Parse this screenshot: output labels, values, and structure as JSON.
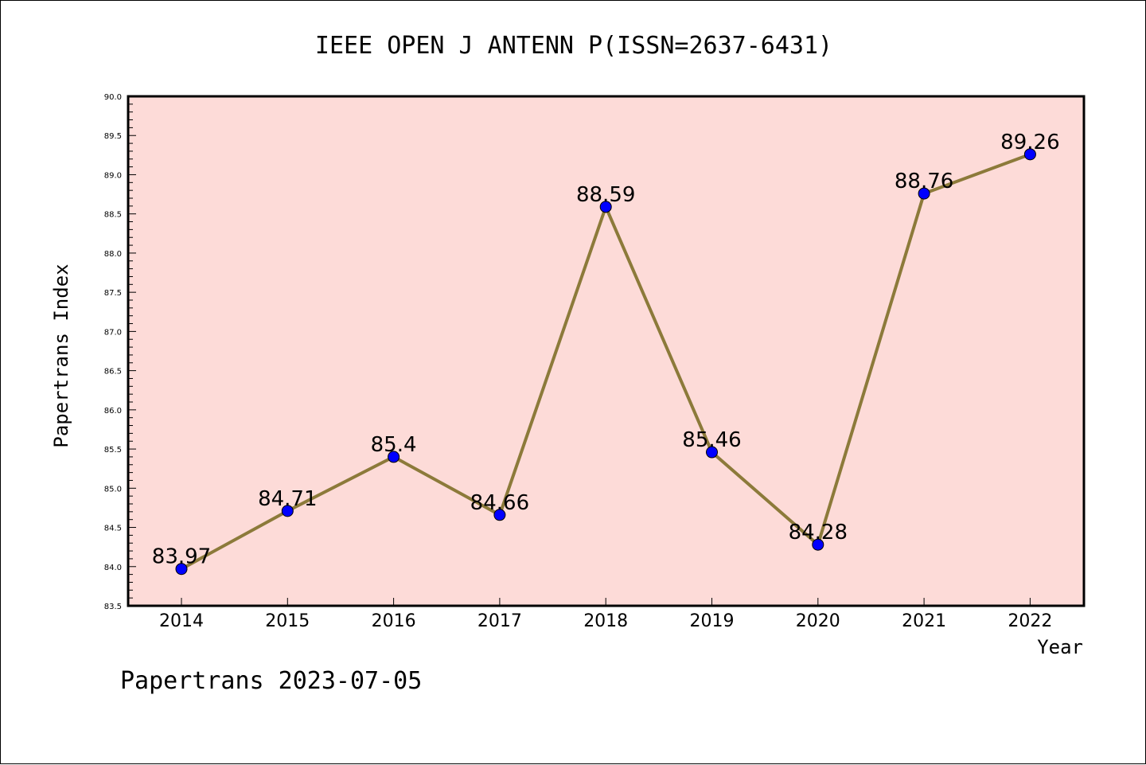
{
  "chart_data": {
    "type": "line",
    "title": "IEEE OPEN J ANTENN P(ISSN=2637-6431)",
    "xlabel": "Year",
    "ylabel": "Papertrans Index",
    "x": [
      "2014",
      "2015",
      "2016",
      "2017",
      "2018",
      "2019",
      "2020",
      "2021",
      "2022"
    ],
    "values": [
      83.97,
      84.71,
      85.4,
      84.66,
      88.59,
      85.46,
      84.28,
      88.76,
      89.26
    ],
    "data_labels": [
      "83.97",
      "84.71",
      "85.4",
      "84.66",
      "88.59",
      "85.46",
      "84.28",
      "88.76",
      "89.26"
    ],
    "ylim": [
      83.5,
      90.0
    ],
    "yticks": [
      "83.5",
      "84.0",
      "84.5",
      "85.0",
      "85.5",
      "86.0",
      "86.5",
      "87.0",
      "87.5",
      "88.0",
      "88.5",
      "89.0",
      "89.5",
      "90.0"
    ],
    "grid": false,
    "legend": "none"
  },
  "footer": "Papertrans 2023-07-05",
  "colors": {
    "plot_background": "#fddbd8",
    "line": "#8c7a3a",
    "marker": "#0000ff",
    "axis": "#000000"
  }
}
